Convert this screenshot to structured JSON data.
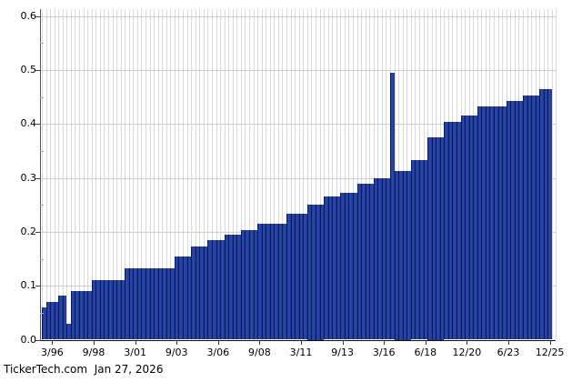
{
  "footer": {
    "source": "TickerTech.com",
    "date": "Jan 27, 2026"
  },
  "colors": {
    "bar_fill": "#1e3c96",
    "bar_edge": "#0d1c56",
    "grid_vertical": "#dadada",
    "grid_horizontal": "#cfcfcf",
    "axis": "#111111",
    "background": "#ffffff",
    "text": "#000000"
  },
  "chart_data": {
    "type": "bar",
    "title": "",
    "xlabel": "",
    "ylabel": "",
    "ylim": [
      0.0,
      0.6
    ],
    "grid": "both",
    "legend": "none",
    "y_tick_labels": [
      "0.0",
      "0.1",
      "0.2",
      "0.3",
      "0.4",
      "0.5",
      "0.6"
    ],
    "y_tick_values": [
      0.0,
      0.1,
      0.2,
      0.3,
      0.4,
      0.5,
      0.6
    ],
    "y_minor_tick_values": [
      0.05,
      0.15,
      0.25,
      0.35,
      0.45,
      0.55
    ],
    "x_tick_labels": [
      "3/96",
      "9/98",
      "3/01",
      "9/03",
      "3/06",
      "9/08",
      "3/11",
      "9/13",
      "3/16",
      "6/18",
      "12/20",
      "6/23",
      "12/25"
    ],
    "x_tick_bar_index": [
      3,
      13,
      23,
      33,
      43,
      53,
      63,
      73,
      83,
      93,
      103,
      113,
      123
    ],
    "values": [
      0.06,
      0.07,
      0.07,
      0.07,
      0.0825,
      0.0825,
      0.03,
      0.09,
      0.09,
      0.09,
      0.09,
      0.09,
      0.11,
      0.11,
      0.11,
      0.11,
      0.11,
      0.11,
      0.11,
      0.11,
      0.1325,
      0.1325,
      0.1325,
      0.1325,
      0.1325,
      0.1325,
      0.1325,
      0.1325,
      0.1325,
      0.1325,
      0.1325,
      0.1325,
      0.155,
      0.155,
      0.155,
      0.155,
      0.1725,
      0.1725,
      0.1725,
      0.1725,
      0.185,
      0.185,
      0.185,
      0.185,
      0.195,
      0.195,
      0.195,
      0.195,
      0.2035,
      0.2035,
      0.2035,
      0.2035,
      0.215,
      0.215,
      0.215,
      0.215,
      0.215,
      0.215,
      0.215,
      0.2335,
      0.2335,
      0.2335,
      0.2335,
      0.2335,
      0.25,
      0.25,
      0.25,
      0.25,
      0.265,
      0.265,
      0.265,
      0.265,
      0.2725,
      0.2725,
      0.2725,
      0.2725,
      0.29,
      0.29,
      0.29,
      0.29,
      0.3,
      0.3,
      0.3,
      0.3,
      0.495,
      0.3125,
      0.3125,
      0.3125,
      0.3125,
      0.3325,
      0.3325,
      0.3325,
      0.3325,
      0.375,
      0.375,
      0.375,
      0.375,
      0.4035,
      0.4035,
      0.4035,
      0.4035,
      0.4155,
      0.4155,
      0.4155,
      0.4155,
      0.4325,
      0.4325,
      0.4325,
      0.4325,
      0.4325,
      0.4325,
      0.4325,
      0.4425,
      0.4425,
      0.4425,
      0.4425,
      0.4525,
      0.4525,
      0.4525,
      0.4525,
      0.465,
      0.465,
      0.465
    ]
  }
}
